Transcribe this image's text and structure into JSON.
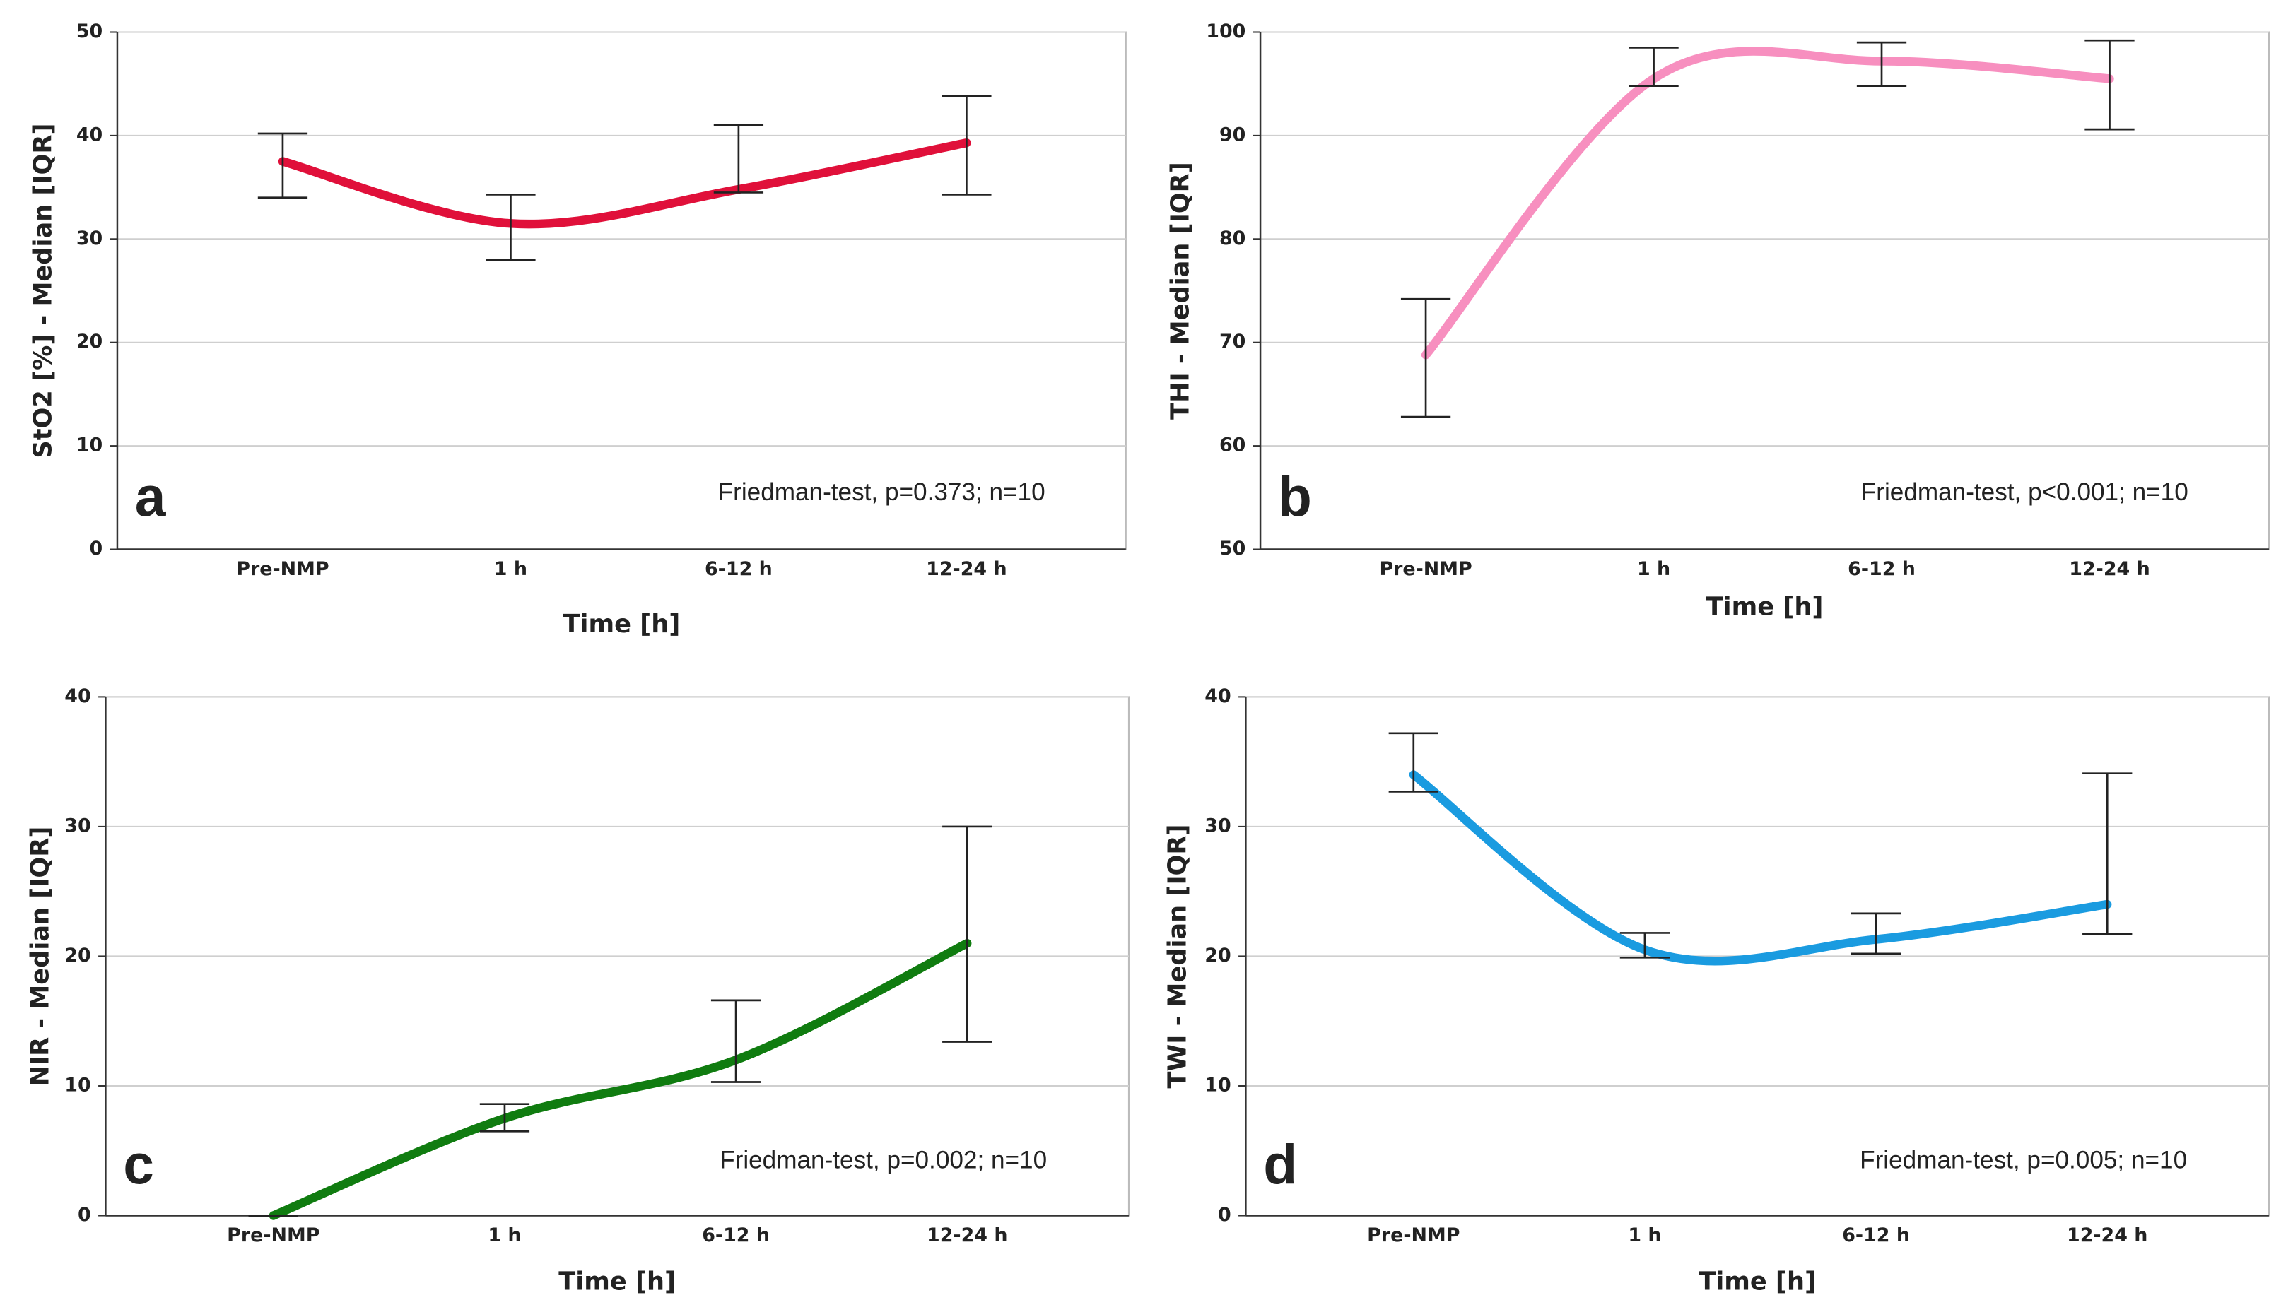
{
  "chart_data": [
    {
      "type": "line",
      "panel_label": "a",
      "y_label": "StO2 [%] - Median [IQR]",
      "x_label": "Time [h]",
      "annotation": "Friedman-test, p=0.373; n=10",
      "categories": [
        "Pre-NMP",
        "1 h",
        "6-12 h",
        "12-24 h"
      ],
      "values": [
        37.5,
        31.5,
        34.8,
        39.3
      ],
      "lower": [
        34,
        28,
        34.5,
        34.3
      ],
      "upper": [
        40.2,
        34.3,
        41,
        43.8
      ],
      "color": "#e0103a",
      "ylim": [
        0,
        50
      ],
      "yticks": [
        0,
        10,
        20,
        30,
        40,
        50
      ],
      "grid": true
    },
    {
      "type": "line",
      "panel_label": "b",
      "y_label": "THI - Median [IQR]",
      "x_label": "Time [h]",
      "annotation": "Friedman-test, p<0.001; n=10",
      "categories": [
        "Pre-NMP",
        "1 h",
        "6-12 h",
        "12-24 h"
      ],
      "values": [
        68.8,
        95.5,
        97.2,
        95.5
      ],
      "lower": [
        62.8,
        94.8,
        94.8,
        90.6
      ],
      "upper": [
        74.2,
        98.5,
        99,
        99.2
      ],
      "color": "#f78fbf",
      "ylim": [
        50,
        100
      ],
      "yticks": [
        50,
        60,
        70,
        80,
        90,
        100
      ],
      "grid": true
    },
    {
      "type": "line",
      "panel_label": "c",
      "y_label": "NIR - Median [IQR]",
      "x_label": "Time [h]",
      "annotation": "Friedman-test, p=0.002; n=10",
      "categories": [
        "Pre-NMP",
        "1 h",
        "6-12 h",
        "12-24 h"
      ],
      "values": [
        0,
        7.5,
        12,
        21
      ],
      "lower": [
        0,
        6.5,
        10.3,
        13.4
      ],
      "upper": [
        0,
        8.6,
        16.6,
        30
      ],
      "color": "#107c10",
      "ylim": [
        0,
        40
      ],
      "yticks": [
        0,
        10,
        20,
        30,
        40
      ],
      "grid": true
    },
    {
      "type": "line",
      "panel_label": "d",
      "y_label": "TWI - Median [IQR]",
      "x_label": "Time [h]",
      "annotation": "Friedman-test, p=0.005; n=10",
      "categories": [
        "Pre-NMP",
        "1 h",
        "6-12 h",
        "12-24 h"
      ],
      "values": [
        34,
        20.5,
        21.3,
        24
      ],
      "lower": [
        32.7,
        19.9,
        20.2,
        21.7
      ],
      "upper": [
        37.2,
        21.8,
        23.3,
        34.1
      ],
      "color": "#1a9be0",
      "ylim": [
        0,
        40
      ],
      "yticks": [
        0,
        10,
        20,
        30,
        40
      ],
      "grid": true
    }
  ]
}
